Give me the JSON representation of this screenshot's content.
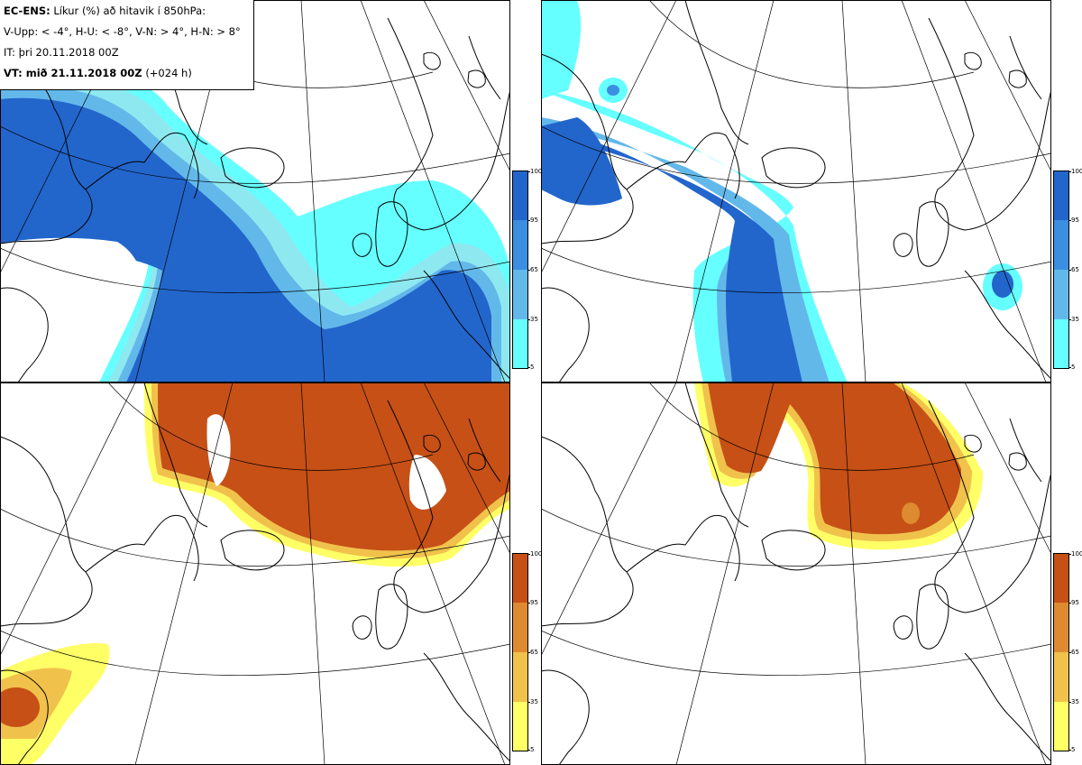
{
  "header": {
    "model": "EC-ENS:",
    "title": "Líkur (%) að hitavik í 850hPa:",
    "categories": "V-Upp: < -4°, H-U: < -8°, V-N: > 4°, H-N: > 8°",
    "init_time": "IT: þri 20.11.2018 00Z",
    "valid_time_label": "VT: mið 21.11.2018 00Z",
    "lead_time": "(+024 h)"
  },
  "legends": {
    "ticks": [
      "100",
      "95",
      "65",
      "35",
      "5"
    ],
    "cold_colors": [
      "#2266cc",
      "#3b8ee0",
      "#63b8ea",
      "#8ee8f0",
      "#66ffff"
    ],
    "warm_colors": [
      "#c65016",
      "#de8a30",
      "#f0c24c",
      "#f8e868",
      "#ffff66"
    ]
  },
  "panels": [
    {
      "id": "V-Upp",
      "threshold": "< -4°",
      "scheme": "cold"
    },
    {
      "id": "H-U",
      "threshold": "< -8°",
      "scheme": "cold"
    },
    {
      "id": "V-N",
      "threshold": "> 4°",
      "scheme": "warm"
    },
    {
      "id": "H-N",
      "threshold": "> 8°",
      "scheme": "warm"
    }
  ]
}
